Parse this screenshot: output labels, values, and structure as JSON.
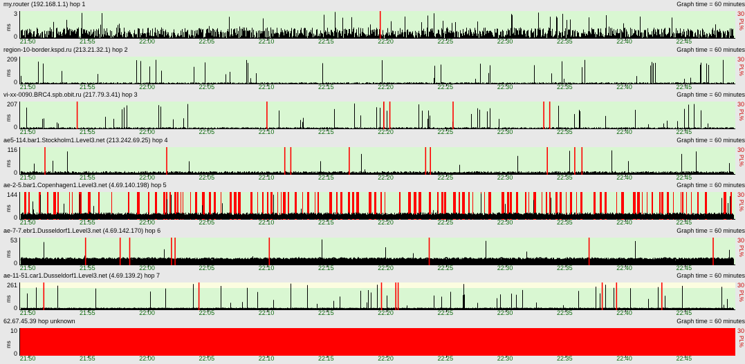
{
  "app": {
    "graph_time_label": "Graph time = 60 minutes",
    "ms_label": "ms",
    "pl_label": "PL%",
    "pl_max": "30",
    "time_ticks": [
      "21:50",
      "21:55",
      "22:00",
      "22:05",
      "22:10",
      "22:15",
      "22:20",
      "22:25",
      "22:30",
      "22:35",
      "22:40",
      "22:45"
    ],
    "colors": {
      "plot_bg": "#d9f7d2",
      "plot_bg_top": "#fcfde0",
      "loss": "#ff0000",
      "latency": "#000000",
      "ticks": "#0a6a0a"
    }
  },
  "chart_data": [
    {
      "type": "bar",
      "title": "my.router (192.168.1.1) hop 1",
      "ymax": "3",
      "ymax_value": 3,
      "noise": 0.4,
      "spikes": 0.06,
      "baseline": 0,
      "loss_minutes": [
        29.4
      ],
      "fill_all": false,
      "xlabel": "",
      "ylabel": "ms"
    },
    {
      "type": "bar",
      "title": "region-10-border.kspd.ru (213.21.32.1) hop 2",
      "ymax": "209",
      "ymax_value": 209,
      "noise": 0.05,
      "spikes": 0.05,
      "baseline": 0,
      "loss_minutes": [],
      "fill_all": false,
      "xlabel": "",
      "ylabel": "ms"
    },
    {
      "type": "bar",
      "title": "vi-xx-0090.BRC4.spb.obit.ru (217.79.3.41) hop 3",
      "ymax": "207",
      "ymax_value": 207,
      "noise": 0.05,
      "spikes": 0.05,
      "baseline": 0,
      "loss_minutes": [
        4.0,
        19.9,
        29.7,
        30.2,
        35.5,
        43.1,
        43.6,
        60.6,
        60.8
      ],
      "fill_all": false,
      "xlabel": "",
      "ylabel": "ms"
    },
    {
      "type": "line",
      "title": "ae5-114.bar1.Stockholm1.Level3.net (213.242.69.25) hop 4",
      "ymax": "116",
      "ymax_value": 116,
      "noise": 0.08,
      "spikes": 0.02,
      "baseline": 0.03,
      "loss_minutes": [
        1.3,
        11.5,
        21.4,
        21.9,
        26.8,
        33.2,
        33.6,
        43.4,
        45.7,
        46.3,
        61.8,
        66.1,
        66.4,
        69.3,
        70.7
      ],
      "fill_all": false,
      "xlabel": "",
      "ylabel": "ms"
    },
    {
      "type": "line",
      "title": "ae-2-5.bar1.Copenhagen1.Level3.net (4.69.140.198) hop 5",
      "ymax": "144",
      "ymax_value": 144,
      "noise": 0.1,
      "spikes": 0.03,
      "baseline": 0.15,
      "loss_minutes": [],
      "loss_density": 0.45,
      "fill_all": false,
      "xlabel": "",
      "ylabel": "ms"
    },
    {
      "type": "line",
      "title": "ae-7-7.ebr1.Dusseldorf1.Level3.net (4.69.142.170) hop 6",
      "ymax": "53",
      "ymax_value": 53,
      "noise": 0.06,
      "spikes": 0.01,
      "baseline": 0.2,
      "loss_minutes": [
        4.7,
        7.6,
        8.4,
        11.9,
        12.2,
        20.1,
        33.5,
        46.9,
        57.3,
        61.1,
        62.6
      ],
      "fill_all": false,
      "xlabel": "",
      "ylabel": "ms"
    },
    {
      "type": "line",
      "title": "ae-11-51.car1.Dusseldorf1.Level3.net (4.69.139.2) hop 7",
      "ymax": "261",
      "ymax_value": 261,
      "noise": 0.04,
      "spikes": 0.05,
      "baseline": 0.03,
      "loss_minutes": [
        1.2,
        14.2,
        29.5,
        30.7,
        30.9,
        48.0,
        49.2,
        53.0,
        63.4,
        68.8
      ],
      "fill_all": false,
      "xlabel": "",
      "ylabel": "ms"
    },
    {
      "type": "area",
      "title": "62.67.45.39 hop unknown",
      "ymax": "10",
      "ymax_value": 10,
      "noise": 0,
      "spikes": 0,
      "baseline": 0,
      "loss_minutes": [],
      "fill_all": true,
      "xlabel": "",
      "ylabel": "ms"
    }
  ]
}
